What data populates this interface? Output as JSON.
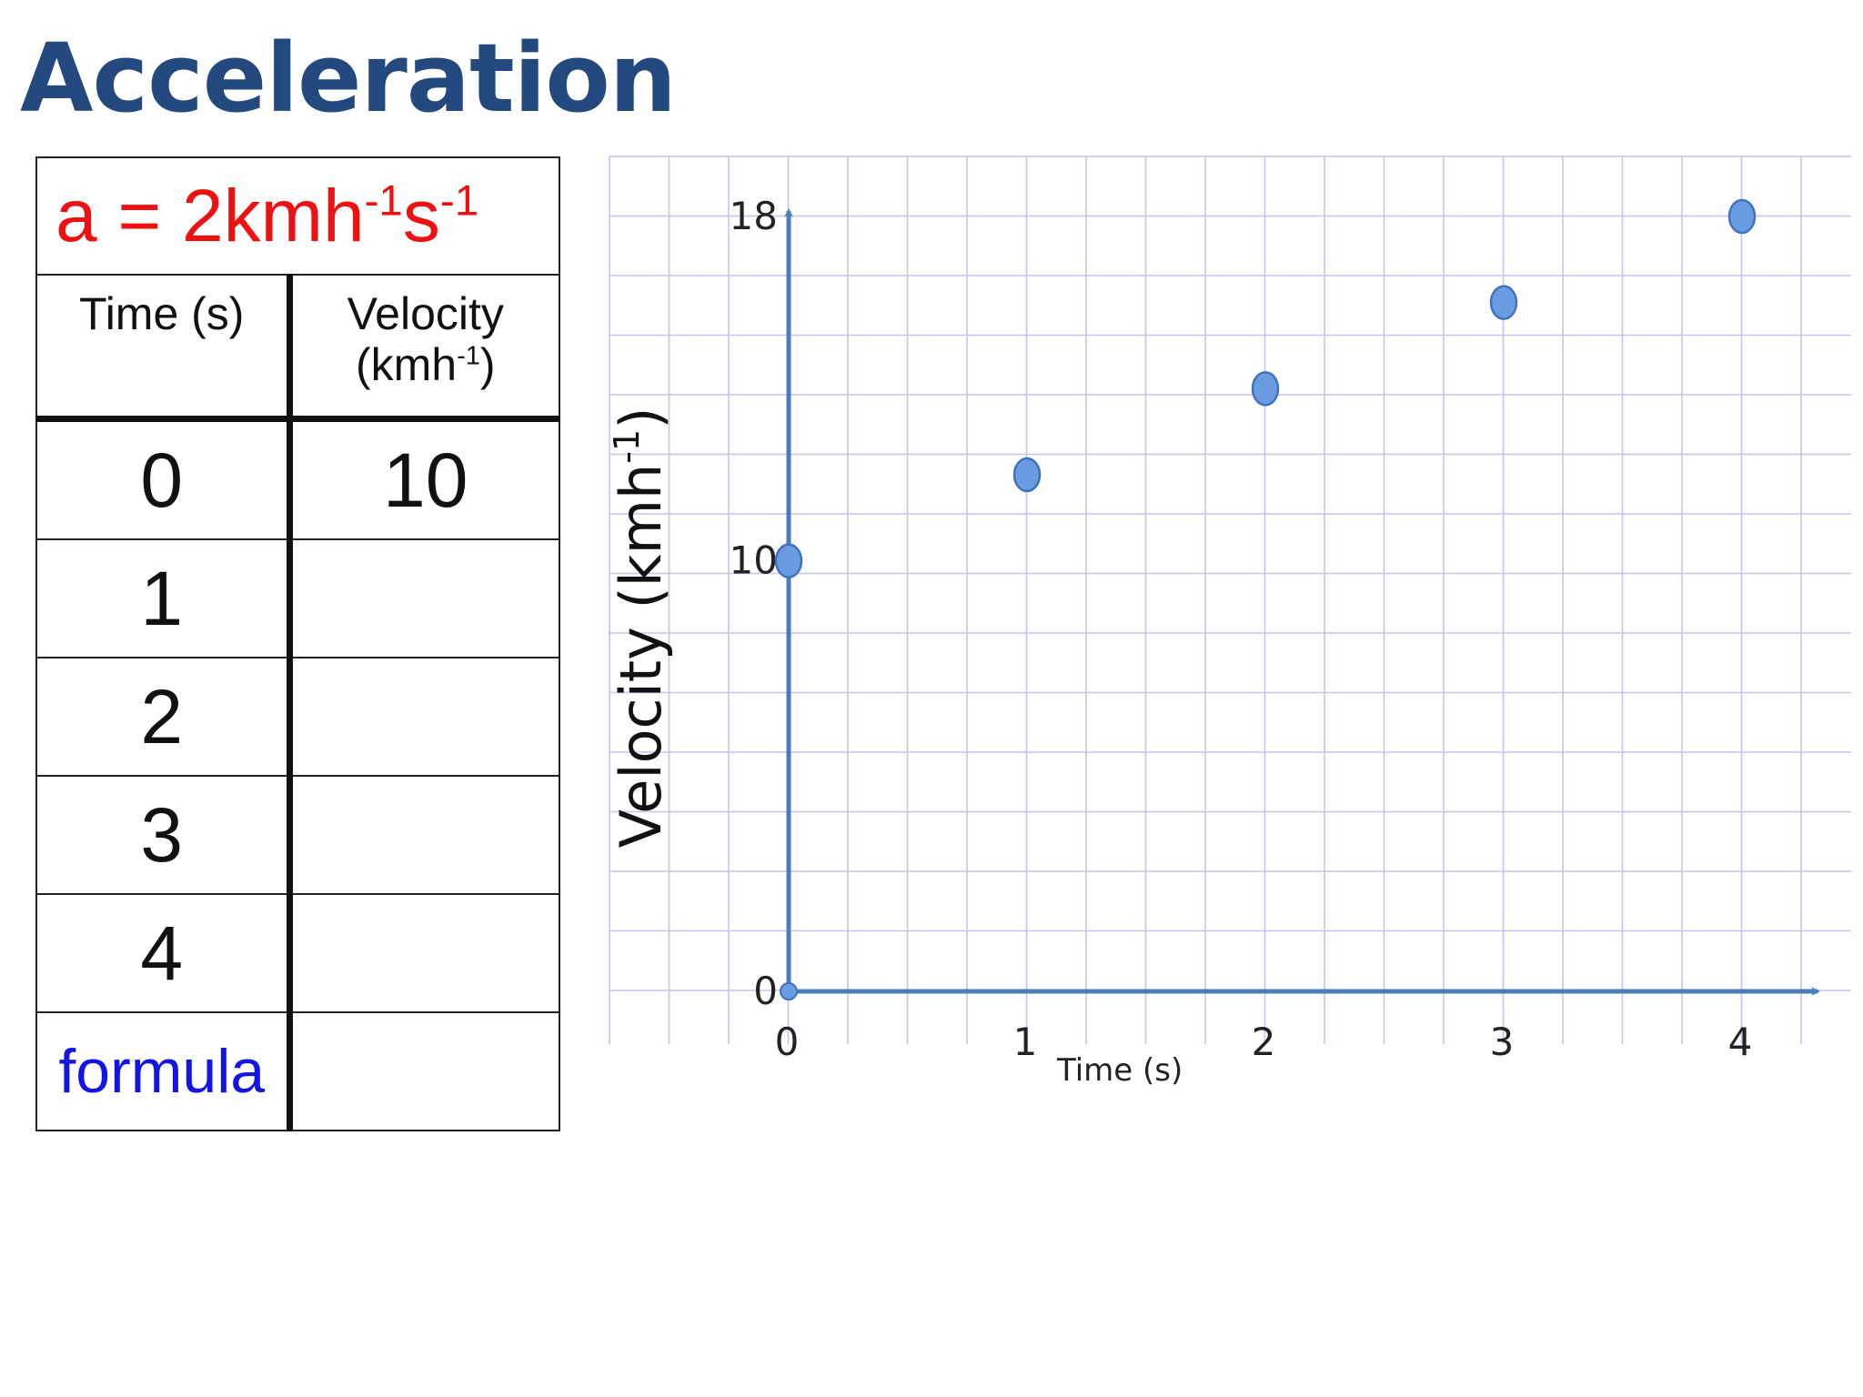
{
  "title": "Acceleration",
  "formula": {
    "prefix": "a = 2kmh",
    "exp1": "-1",
    "mid": "s",
    "exp2": "-1"
  },
  "table": {
    "headers": {
      "time": "Time (s)",
      "velocity_line1": "Velocity",
      "velocity_open": "(kmh",
      "velocity_exp": "-1",
      "velocity_close": ")"
    },
    "rows": [
      {
        "time": "0",
        "velocity": "10"
      },
      {
        "time": "1",
        "velocity": ""
      },
      {
        "time": "2",
        "velocity": ""
      },
      {
        "time": "3",
        "velocity": ""
      },
      {
        "time": "4",
        "velocity": ""
      }
    ],
    "formula_label": "formula",
    "formula_value": ""
  },
  "chart_data": {
    "type": "scatter",
    "title": "",
    "xlabel": "Time (s)",
    "ylabel": "Velocity (kmh",
    "ylabel_exp": "-1",
    "ylabel_close": ")",
    "xlim": [
      0,
      4
    ],
    "ylim": [
      0,
      18
    ],
    "x_ticks": [
      "0",
      "1",
      "2",
      "3",
      "4"
    ],
    "y_ticks": [
      {
        "label": "0",
        "value": 0
      },
      {
        "label": "10",
        "value": 10
      },
      {
        "label": "18",
        "value": 18
      }
    ],
    "grid": true,
    "series": [
      {
        "x": [
          0,
          1,
          2,
          3,
          4
        ],
        "y": [
          10,
          12,
          14,
          16,
          18
        ]
      }
    ],
    "colors": {
      "axis": "#4a7eb8",
      "grid": "#c4c4ee",
      "marker_fill": "#6b9be0",
      "marker_stroke": "#3f73bd"
    }
  }
}
